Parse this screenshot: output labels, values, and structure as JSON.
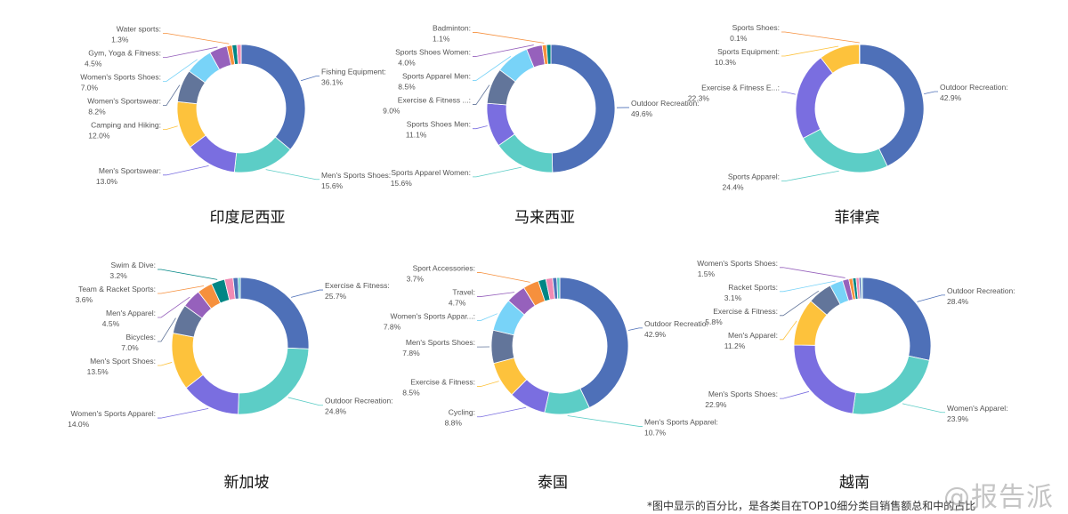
{
  "chart_data": [
    {
      "type": "pie",
      "donut": true,
      "title": "印度尼西亚",
      "slices": [
        {
          "label": "Fishing Equipment",
          "value": 36.1,
          "color": "#4e70b8"
        },
        {
          "label": "Men's Sports Shoes",
          "value": 15.6,
          "color": "#5ccdc6"
        },
        {
          "label": "Men's Sportswear",
          "value": 13.0,
          "color": "#7a6ee0"
        },
        {
          "label": "Camping and Hiking",
          "value": 12.0,
          "color": "#fdc23c"
        },
        {
          "label": "Women's Sportswear",
          "value": 8.2,
          "color": "#62759a"
        },
        {
          "label": "Women's Sports Shoes",
          "value": 7.0,
          "color": "#78d3f8"
        },
        {
          "label": "Gym, Yoga & Fitness",
          "value": 4.5,
          "color": "#9661bc"
        },
        {
          "label": "Water sports",
          "value": 1.3,
          "color": "#f6903d"
        },
        {
          "label": "",
          "value": 1.2,
          "color": "#008685"
        },
        {
          "label": "",
          "value": 1.1,
          "color": "#f08bb4"
        }
      ]
    },
    {
      "type": "pie",
      "donut": true,
      "title": "马来西亚",
      "slices": [
        {
          "label": "Outdoor Recreation",
          "value": 49.6,
          "color": "#4e70b8"
        },
        {
          "label": "Sports Apparel Women",
          "value": 15.6,
          "color": "#5ccdc6"
        },
        {
          "label": "Sports Shoes Men",
          "value": 11.1,
          "color": "#7a6ee0"
        },
        {
          "label": "Exercise & Fitness ...",
          "value": 9.0,
          "color": "#62759a"
        },
        {
          "label": "Sports Apparel Men",
          "value": 8.5,
          "color": "#78d3f8"
        },
        {
          "label": "Sports Shoes Women",
          "value": 4.0,
          "color": "#9661bc"
        },
        {
          "label": "Badminton",
          "value": 1.1,
          "color": "#f6903d"
        },
        {
          "label": "",
          "value": 1.1,
          "color": "#008685"
        }
      ]
    },
    {
      "type": "pie",
      "donut": true,
      "title": "菲律宾",
      "slices": [
        {
          "label": "Outdoor Recreation",
          "value": 42.9,
          "color": "#4e70b8"
        },
        {
          "label": "Sports Apparel",
          "value": 24.4,
          "color": "#5ccdc6"
        },
        {
          "label": "Exercise & Fitness E...",
          "value": 22.3,
          "color": "#7a6ee0"
        },
        {
          "label": "Sports Equipment",
          "value": 10.3,
          "color": "#fdc23c"
        },
        {
          "label": "Sports Shoes",
          "value": 0.1,
          "color": "#f6903d"
        }
      ]
    },
    {
      "type": "pie",
      "donut": true,
      "title": "新加坡",
      "slices": [
        {
          "label": "Exercise & Fitness",
          "value": 25.7,
          "color": "#4e70b8"
        },
        {
          "label": "Outdoor Recreation",
          "value": 24.8,
          "color": "#5ccdc6"
        },
        {
          "label": "Women's Sports Apparel",
          "value": 14.0,
          "color": "#7a6ee0"
        },
        {
          "label": "Men's Sport Shoes",
          "value": 13.5,
          "color": "#fdc23c"
        },
        {
          "label": "Bicycles",
          "value": 7.0,
          "color": "#62759a"
        },
        {
          "label": "Men's Apparel",
          "value": 4.5,
          "color": "#9661bc"
        },
        {
          "label": "Team & Racket Sports",
          "value": 3.6,
          "color": "#f6903d"
        },
        {
          "label": "Swim & Dive",
          "value": 3.2,
          "color": "#008685"
        },
        {
          "label": "",
          "value": 2.0,
          "color": "#f08bb4"
        },
        {
          "label": "",
          "value": 1.2,
          "color": "#4e70b8"
        },
        {
          "label": "",
          "value": 0.5,
          "color": "#5ccdc6"
        }
      ]
    },
    {
      "type": "pie",
      "donut": true,
      "title": "泰国",
      "slices": [
        {
          "label": "Outdoor Recreatio",
          "value": 42.9,
          "color": "#4e70b8"
        },
        {
          "label": "Men's Sports Apparel",
          "value": 10.7,
          "color": "#5ccdc6"
        },
        {
          "label": "Cycling",
          "value": 8.8,
          "color": "#7a6ee0"
        },
        {
          "label": "Exercise & Fitness",
          "value": 8.5,
          "color": "#fdc23c"
        },
        {
          "label": "Men's Sports Shoes",
          "value": 7.8,
          "color": "#62759a"
        },
        {
          "label": "Women's Sports Appar...",
          "value": 7.8,
          "color": "#78d3f8"
        },
        {
          "label": "Travel",
          "value": 4.7,
          "color": "#9661bc"
        },
        {
          "label": "Sport Accessories",
          "value": 3.7,
          "color": "#f6903d"
        },
        {
          "label": "",
          "value": 1.8,
          "color": "#008685"
        },
        {
          "label": "",
          "value": 1.6,
          "color": "#f08bb4"
        },
        {
          "label": "",
          "value": 1.0,
          "color": "#4e70b8"
        },
        {
          "label": "",
          "value": 0.7,
          "color": "#5ccdc6"
        }
      ]
    },
    {
      "type": "pie",
      "donut": true,
      "title": "越南",
      "slices": [
        {
          "label": "Outdoor Recreation",
          "value": 28.4,
          "color": "#4e70b8"
        },
        {
          "label": "Women's Apparel",
          "value": 23.9,
          "color": "#5ccdc6"
        },
        {
          "label": "Men's Sports Shoes",
          "value": 22.9,
          "color": "#7a6ee0"
        },
        {
          "label": "Men's Apparel",
          "value": 11.2,
          "color": "#fdc23c"
        },
        {
          "label": "Exercise & Fitness",
          "value": 5.8,
          "color": "#62759a"
        },
        {
          "label": "Racket Sports",
          "value": 3.1,
          "color": "#78d3f8"
        },
        {
          "label": "Women's Sports Shoes",
          "value": 1.5,
          "color": "#9661bc"
        },
        {
          "label": "",
          "value": 0.9,
          "color": "#f6903d"
        },
        {
          "label": "",
          "value": 0.8,
          "color": "#008685"
        },
        {
          "label": "",
          "value": 0.7,
          "color": "#f08bb4"
        },
        {
          "label": "",
          "value": 0.5,
          "color": "#4e70b8"
        },
        {
          "label": "",
          "value": 0.3,
          "color": "#5ccdc6"
        }
      ]
    }
  ],
  "footnote": "*图中显示的百分比，是各类目在TOP10细分类目销售额总和中的占比",
  "watermark": "@报告派"
}
